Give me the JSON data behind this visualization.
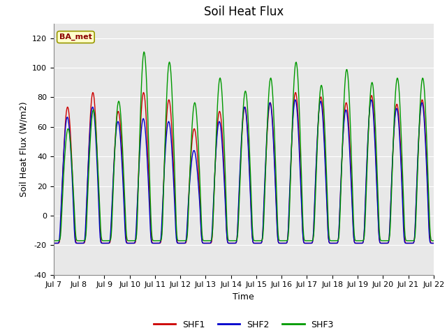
{
  "title": "Soil Heat Flux",
  "ylabel": "Soil Heat Flux (W/m2)",
  "xlabel": "Time",
  "ylim": [
    -40,
    130
  ],
  "yticks": [
    -40,
    -20,
    0,
    20,
    40,
    60,
    80,
    100,
    120
  ],
  "xtick_labels": [
    "Jul 7",
    "Jul 8",
    "Jul 9",
    "Jul 10",
    "Jul 11",
    "Jul 12",
    "Jul 13",
    "Jul 14",
    "Jul 15",
    "Jul 16",
    "Jul 17",
    "Jul 18",
    "Jul 19",
    "Jul 20",
    "Jul 21",
    "Jul 22"
  ],
  "shf1_color": "#cc0000",
  "shf2_color": "#0000cc",
  "shf3_color": "#009900",
  "legend_label1": "SHF1",
  "legend_label2": "SHF2",
  "legend_label3": "SHF3",
  "station_label": "BA_met",
  "bg_color": "#e8e8e8",
  "linewidth": 1.0,
  "title_fontsize": 12,
  "label_fontsize": 9,
  "tick_fontsize": 8,
  "peaks_shf1": [
    75,
    85,
    72,
    85,
    80,
    60,
    72,
    75,
    78,
    85,
    82,
    78,
    83,
    77,
    80
  ],
  "peaks_shf2": [
    68,
    75,
    65,
    67,
    65,
    45,
    65,
    75,
    78,
    80,
    79,
    73,
    80,
    74,
    78
  ],
  "peaks_shf3": [
    60,
    73,
    79,
    113,
    106,
    78,
    95,
    86,
    95,
    106,
    90,
    101,
    92,
    95,
    95
  ],
  "trough_shf1": -22,
  "trough_shf2": -22,
  "trough_shf3": -20
}
